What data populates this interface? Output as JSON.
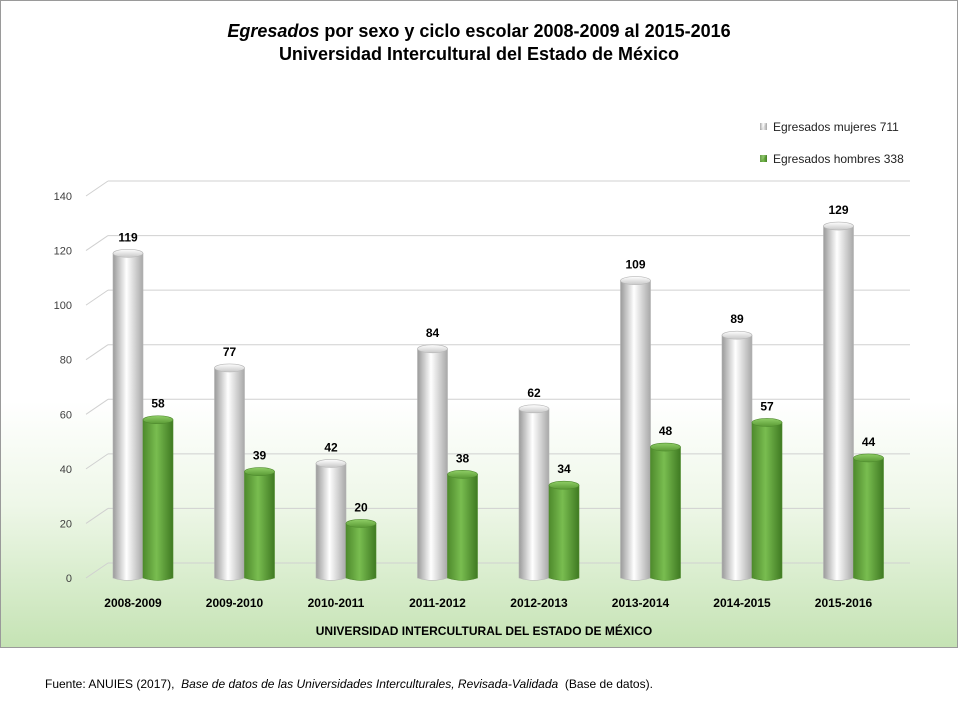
{
  "title": {
    "line1_italic": "Egresados",
    "line1_rest": " por sexo y ciclo escolar 2008-2009 al 2015-2016",
    "line2": "Universidad Intercultural del Estado de México"
  },
  "source": {
    "prefix": "Fuente: ANUIES (2017),",
    "italic": "Base de datos de las Universidades  Interculturales, Revisada-Validada",
    "suffix": "(Base de datos)."
  },
  "colors": {
    "mujeres": "#d9d9d9",
    "hombres": "#6aa843"
  },
  "chart_data": {
    "type": "bar",
    "title": "Egresados por sexo y ciclo escolar 2008-2009 al 2015-2016 Universidad Intercultural del Estado de México",
    "xlabel": "UNIVERSIDAD INTERCULTURAL DEL ESTADO DE MÉXICO",
    "ylabel": "",
    "ylim": [
      0,
      140
    ],
    "yticks": [
      0,
      20,
      40,
      60,
      80,
      100,
      120,
      140
    ],
    "grid": true,
    "legend_position": "top-right",
    "categories": [
      "2008-2009",
      "2009-2010",
      "2010-2011",
      "2011-2012",
      "2012-2013",
      "2013-2014",
      "2014-2015",
      "2015-2016"
    ],
    "series": [
      {
        "name": "Egresados mujeres 711",
        "values": [
          119,
          77,
          42,
          84,
          62,
          109,
          89,
          129
        ]
      },
      {
        "name": "Egresados hombres 338",
        "values": [
          58,
          39,
          20,
          38,
          34,
          48,
          57,
          44
        ]
      }
    ]
  }
}
